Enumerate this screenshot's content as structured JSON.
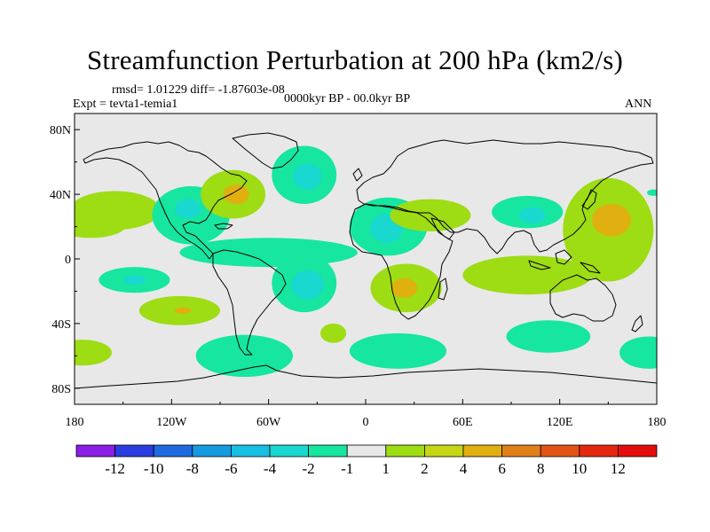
{
  "title": "Streamfunction Perturbation at 200 hPa (km2/s)",
  "stats": "rmsd= 1.01229 diff= -1.87603e-08",
  "experiment": "Expt = tevta1-temia1",
  "period": "0000kyr BP - 00.0kyr BP",
  "season": "ANN",
  "map": {
    "lat_labels": [
      "80N",
      "40N",
      "0",
      "40S",
      "80S"
    ],
    "lat_values": [
      80,
      40,
      0,
      -40,
      -80
    ],
    "lon_labels": [
      "180",
      "120W",
      "60W",
      "0",
      "60E",
      "120E",
      "180"
    ],
    "lon_values": [
      -180,
      -120,
      -60,
      0,
      60,
      120,
      180
    ],
    "lat_range": [
      -90,
      90
    ],
    "lon_range": [
      -180,
      180
    ],
    "background_color": "#e8e8e8"
  },
  "colorbar": {
    "labels": [
      "-12",
      "-10",
      "-8",
      "-6",
      "-4",
      "-2",
      "-1",
      "1",
      "2",
      "4",
      "6",
      "8",
      "10",
      "12"
    ],
    "colors": [
      "#8c1ee6",
      "#2b3ce0",
      "#1e6bdf",
      "#169ae0",
      "#17c0e3",
      "#18d8cf",
      "#16e6a0",
      "#e8e8e8",
      "#9edc14",
      "#c6d614",
      "#e0b010",
      "#e08018",
      "#e25414",
      "#e42810",
      "#e40d0d"
    ]
  },
  "anomalies": [
    {
      "lon": -155,
      "lat": 30,
      "rx": 28,
      "ry": 12,
      "level": "2"
    },
    {
      "lon": -170,
      "lat": 21,
      "rx": 22,
      "ry": 8,
      "level": "2"
    },
    {
      "lon": -108,
      "lat": 27,
      "rx": 24,
      "ry": 18,
      "level": "-2"
    },
    {
      "lon": -110,
      "lat": 31,
      "rx": 8,
      "ry": 6,
      "level": "-4"
    },
    {
      "lon": -82,
      "lat": 40,
      "rx": 20,
      "ry": 15,
      "level": "2"
    },
    {
      "lon": -80,
      "lat": 40,
      "rx": 8,
      "ry": 6,
      "level": "4"
    },
    {
      "lon": -38,
      "lat": 52,
      "rx": 20,
      "ry": 18,
      "level": "-2"
    },
    {
      "lon": -36,
      "lat": 51,
      "rx": 9,
      "ry": 8,
      "level": "-4"
    },
    {
      "lon": -60,
      "lat": 4,
      "rx": 55,
      "ry": 9,
      "level": "-2"
    },
    {
      "lon": -38,
      "lat": -15,
      "rx": 20,
      "ry": 18,
      "level": "-2"
    },
    {
      "lon": -36,
      "lat": -16,
      "rx": 10,
      "ry": 9,
      "level": "-4"
    },
    {
      "lon": -143,
      "lat": -13,
      "rx": 22,
      "ry": 8,
      "level": "-2"
    },
    {
      "lon": -143,
      "lat": -13,
      "rx": 7,
      "ry": 3,
      "level": "-4"
    },
    {
      "lon": -115,
      "lat": -32,
      "rx": 25,
      "ry": 9,
      "level": "2"
    },
    {
      "lon": -113,
      "lat": -32,
      "rx": 5,
      "ry": 2,
      "level": "4"
    },
    {
      "lon": -75,
      "lat": -60,
      "rx": 30,
      "ry": 13,
      "level": "-2"
    },
    {
      "lon": -175,
      "lat": -58,
      "rx": 18,
      "ry": 8,
      "level": "2"
    },
    {
      "lon": -20,
      "lat": -46,
      "rx": 8,
      "ry": 6,
      "level": "2"
    },
    {
      "lon": 14,
      "lat": 20,
      "rx": 24,
      "ry": 18,
      "level": "-2"
    },
    {
      "lon": 13,
      "lat": 19,
      "rx": 10,
      "ry": 9,
      "level": "-4"
    },
    {
      "lon": 40,
      "lat": 27,
      "rx": 25,
      "ry": 10,
      "level": "2"
    },
    {
      "lon": 25,
      "lat": -18,
      "rx": 22,
      "ry": 15,
      "level": "2"
    },
    {
      "lon": 24,
      "lat": -18,
      "rx": 8,
      "ry": 6,
      "level": "4"
    },
    {
      "lon": 20,
      "lat": -57,
      "rx": 30,
      "ry": 11,
      "level": "-2"
    },
    {
      "lon": 100,
      "lat": 29,
      "rx": 22,
      "ry": 10,
      "level": "-2"
    },
    {
      "lon": 103,
      "lat": 27,
      "rx": 8,
      "ry": 5,
      "level": "-4"
    },
    {
      "lon": 100,
      "lat": -10,
      "rx": 40,
      "ry": 12,
      "level": "2"
    },
    {
      "lon": 113,
      "lat": -48,
      "rx": 26,
      "ry": 10,
      "level": "-2"
    },
    {
      "lon": 150,
      "lat": 18,
      "rx": 28,
      "ry": 32,
      "level": "2"
    },
    {
      "lon": 152,
      "lat": 24,
      "rx": 12,
      "ry": 10,
      "level": "4"
    },
    {
      "lon": 175,
      "lat": -58,
      "rx": 18,
      "ry": 10,
      "level": "-2"
    },
    {
      "lon": 178,
      "lat": 41,
      "rx": 4,
      "ry": 2,
      "level": "-2"
    }
  ]
}
